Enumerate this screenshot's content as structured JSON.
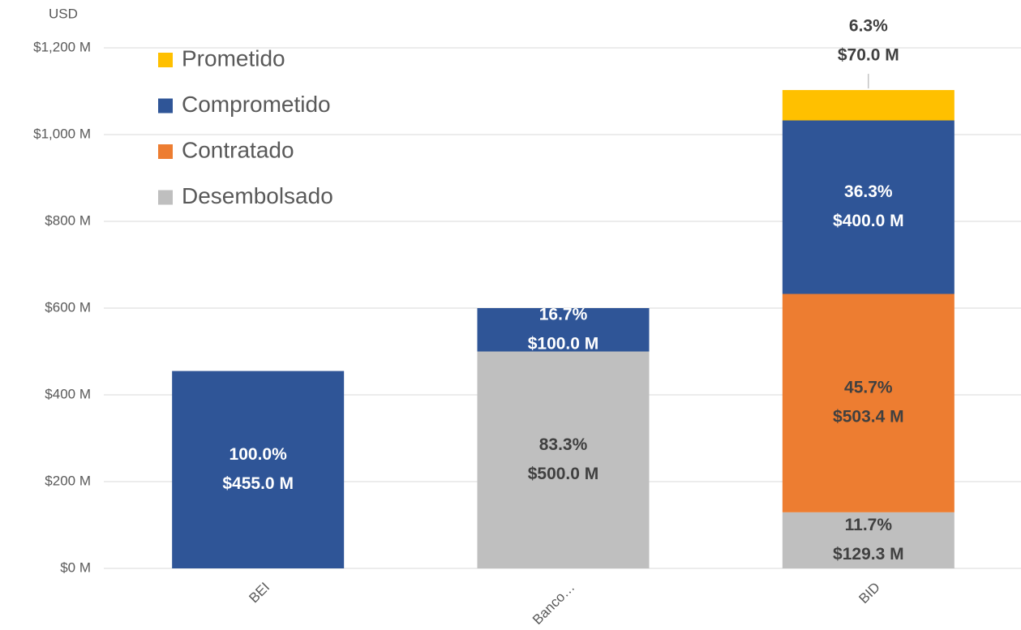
{
  "chart_data": {
    "type": "stacked_bar",
    "y_axis_label": "USD",
    "categories": [
      "BEI",
      "Banco…",
      "BID"
    ],
    "series": [
      {
        "name": "Desembolsado",
        "color": "#bfbfbf",
        "label_color": "#404040",
        "values": [
          null,
          500.0,
          129.3
        ],
        "value_labels": [
          null,
          "$500.0 M",
          "$129.3 M"
        ],
        "percent_labels": [
          null,
          "83.3%",
          "11.7%"
        ]
      },
      {
        "name": "Contratado",
        "color": "#ed7d31",
        "label_color": "#404040",
        "values": [
          null,
          null,
          503.4
        ],
        "value_labels": [
          null,
          null,
          "$503.4 M"
        ],
        "percent_labels": [
          null,
          null,
          "45.7%"
        ]
      },
      {
        "name": "Comprometido",
        "color": "#2f5597",
        "label_color": "#ffffff",
        "values": [
          455.0,
          100.0,
          400.0
        ],
        "value_labels": [
          "$455.0 M",
          "$100.0 M",
          "$400.0 M"
        ],
        "percent_labels": [
          "100.0%",
          "16.7%",
          "36.3%"
        ]
      },
      {
        "name": "Prometido",
        "color": "#ffc000",
        "label_color": "#404040",
        "values": [
          null,
          null,
          70.0
        ],
        "value_labels": [
          null,
          null,
          "$70.0 M"
        ],
        "percent_labels": [
          null,
          null,
          "6.3%"
        ]
      }
    ],
    "ylim": [
      0,
      1200
    ],
    "yticks": [
      {
        "value": 0,
        "label": "$0 M"
      },
      {
        "value": 200,
        "label": "$200 M"
      },
      {
        "value": 400,
        "label": "$400 M"
      },
      {
        "value": 600,
        "label": "$600 M"
      },
      {
        "value": 800,
        "label": "$800 M"
      },
      {
        "value": 1000,
        "label": "$1,000 M"
      },
      {
        "value": 1200,
        "label": "$1,200 M"
      }
    ],
    "grid": true,
    "legend": "top-left"
  }
}
